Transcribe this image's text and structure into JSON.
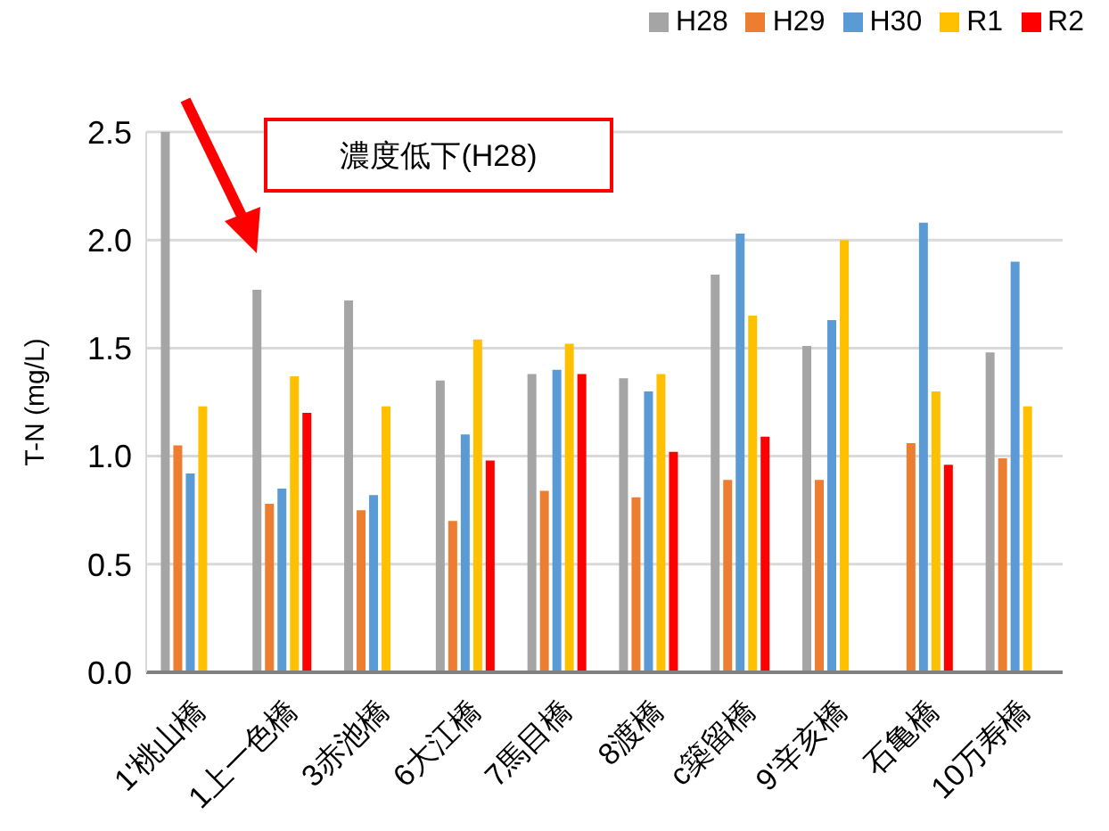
{
  "chart_data": {
    "type": "bar",
    "ylabel": "T-N (mg/L)",
    "categories": [
      "1'桃山橋",
      "1上一色橋",
      "3赤池橋",
      "6大江橋",
      "7馬目橋",
      "8渡橋",
      "c築留橋",
      "9'辛亥橋",
      "石亀橋",
      "10万寿橋"
    ],
    "series": [
      {
        "name": "H28",
        "color": "#a5a5a5",
        "values": [
          2.5,
          1.77,
          1.72,
          1.35,
          1.38,
          1.36,
          1.84,
          1.51,
          null,
          1.48
        ]
      },
      {
        "name": "H29",
        "color": "#ed7d31",
        "values": [
          1.05,
          0.78,
          0.75,
          0.7,
          0.84,
          0.81,
          0.89,
          0.89,
          1.06,
          0.99
        ]
      },
      {
        "name": "H30",
        "color": "#5b9bd5",
        "values": [
          0.92,
          0.85,
          0.82,
          1.1,
          1.4,
          1.3,
          2.03,
          1.63,
          2.08,
          1.9
        ]
      },
      {
        "name": "R1",
        "color": "#ffc000",
        "values": [
          1.23,
          1.37,
          1.23,
          1.54,
          1.52,
          1.38,
          1.65,
          2.0,
          1.3,
          1.23
        ]
      },
      {
        "name": "R2",
        "color": "#ff0000",
        "values": [
          null,
          1.2,
          null,
          0.98,
          1.38,
          1.02,
          1.09,
          null,
          0.96,
          null
        ]
      }
    ],
    "ylim": [
      0,
      2.5
    ],
    "yticks": [
      {
        "value": 0,
        "label": "0.0"
      },
      {
        "value": 0.5,
        "label": "0.5"
      },
      {
        "value": 1,
        "label": "1.0"
      },
      {
        "value": 1.5,
        "label": "1.5"
      },
      {
        "value": 2,
        "label": "2.0"
      },
      {
        "value": 2.5,
        "label": "2.5"
      }
    ],
    "grid": "y",
    "legend": "top right",
    "annotations": [
      "濃度低下(H28)"
    ]
  }
}
